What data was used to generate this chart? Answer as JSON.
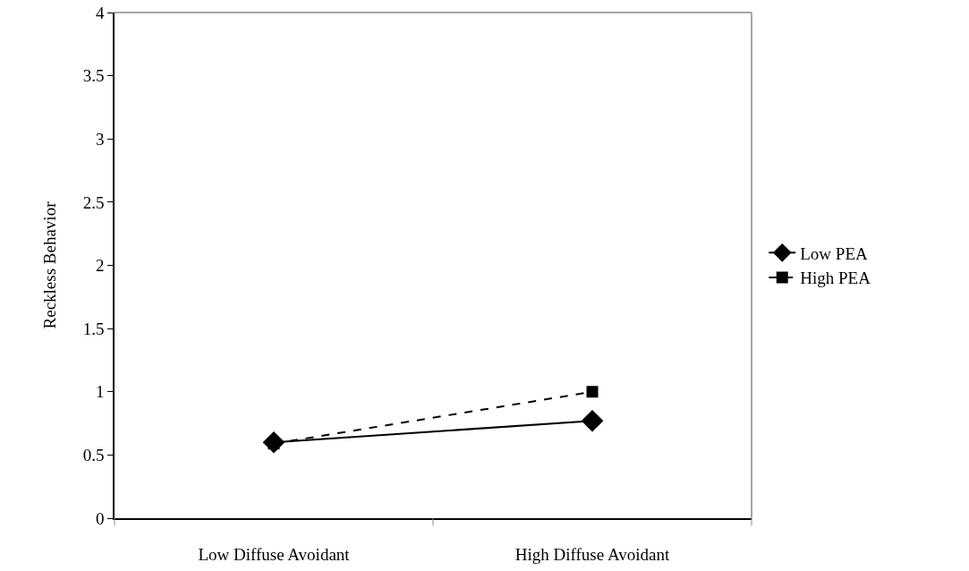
{
  "chart_data": {
    "type": "line",
    "ylabel": "Reckless Behavior",
    "categories": [
      "Low Diffuse Avoidant",
      "High Diffuse Avoidant"
    ],
    "series": [
      {
        "name": "Low PEA",
        "color": "#000000",
        "marker": "diamond",
        "line_style": "solid",
        "values": [
          0.6,
          0.77
        ]
      },
      {
        "name": "High PEA",
        "color": "#000000",
        "marker": "square",
        "line_style": "dashed",
        "values": [
          0.59,
          1.0
        ]
      }
    ],
    "ylim": [
      0,
      4
    ],
    "yticks": [
      0,
      0.5,
      1,
      1.5,
      2,
      2.5,
      3,
      3.5,
      4
    ],
    "grid": false,
    "legend": "right"
  }
}
